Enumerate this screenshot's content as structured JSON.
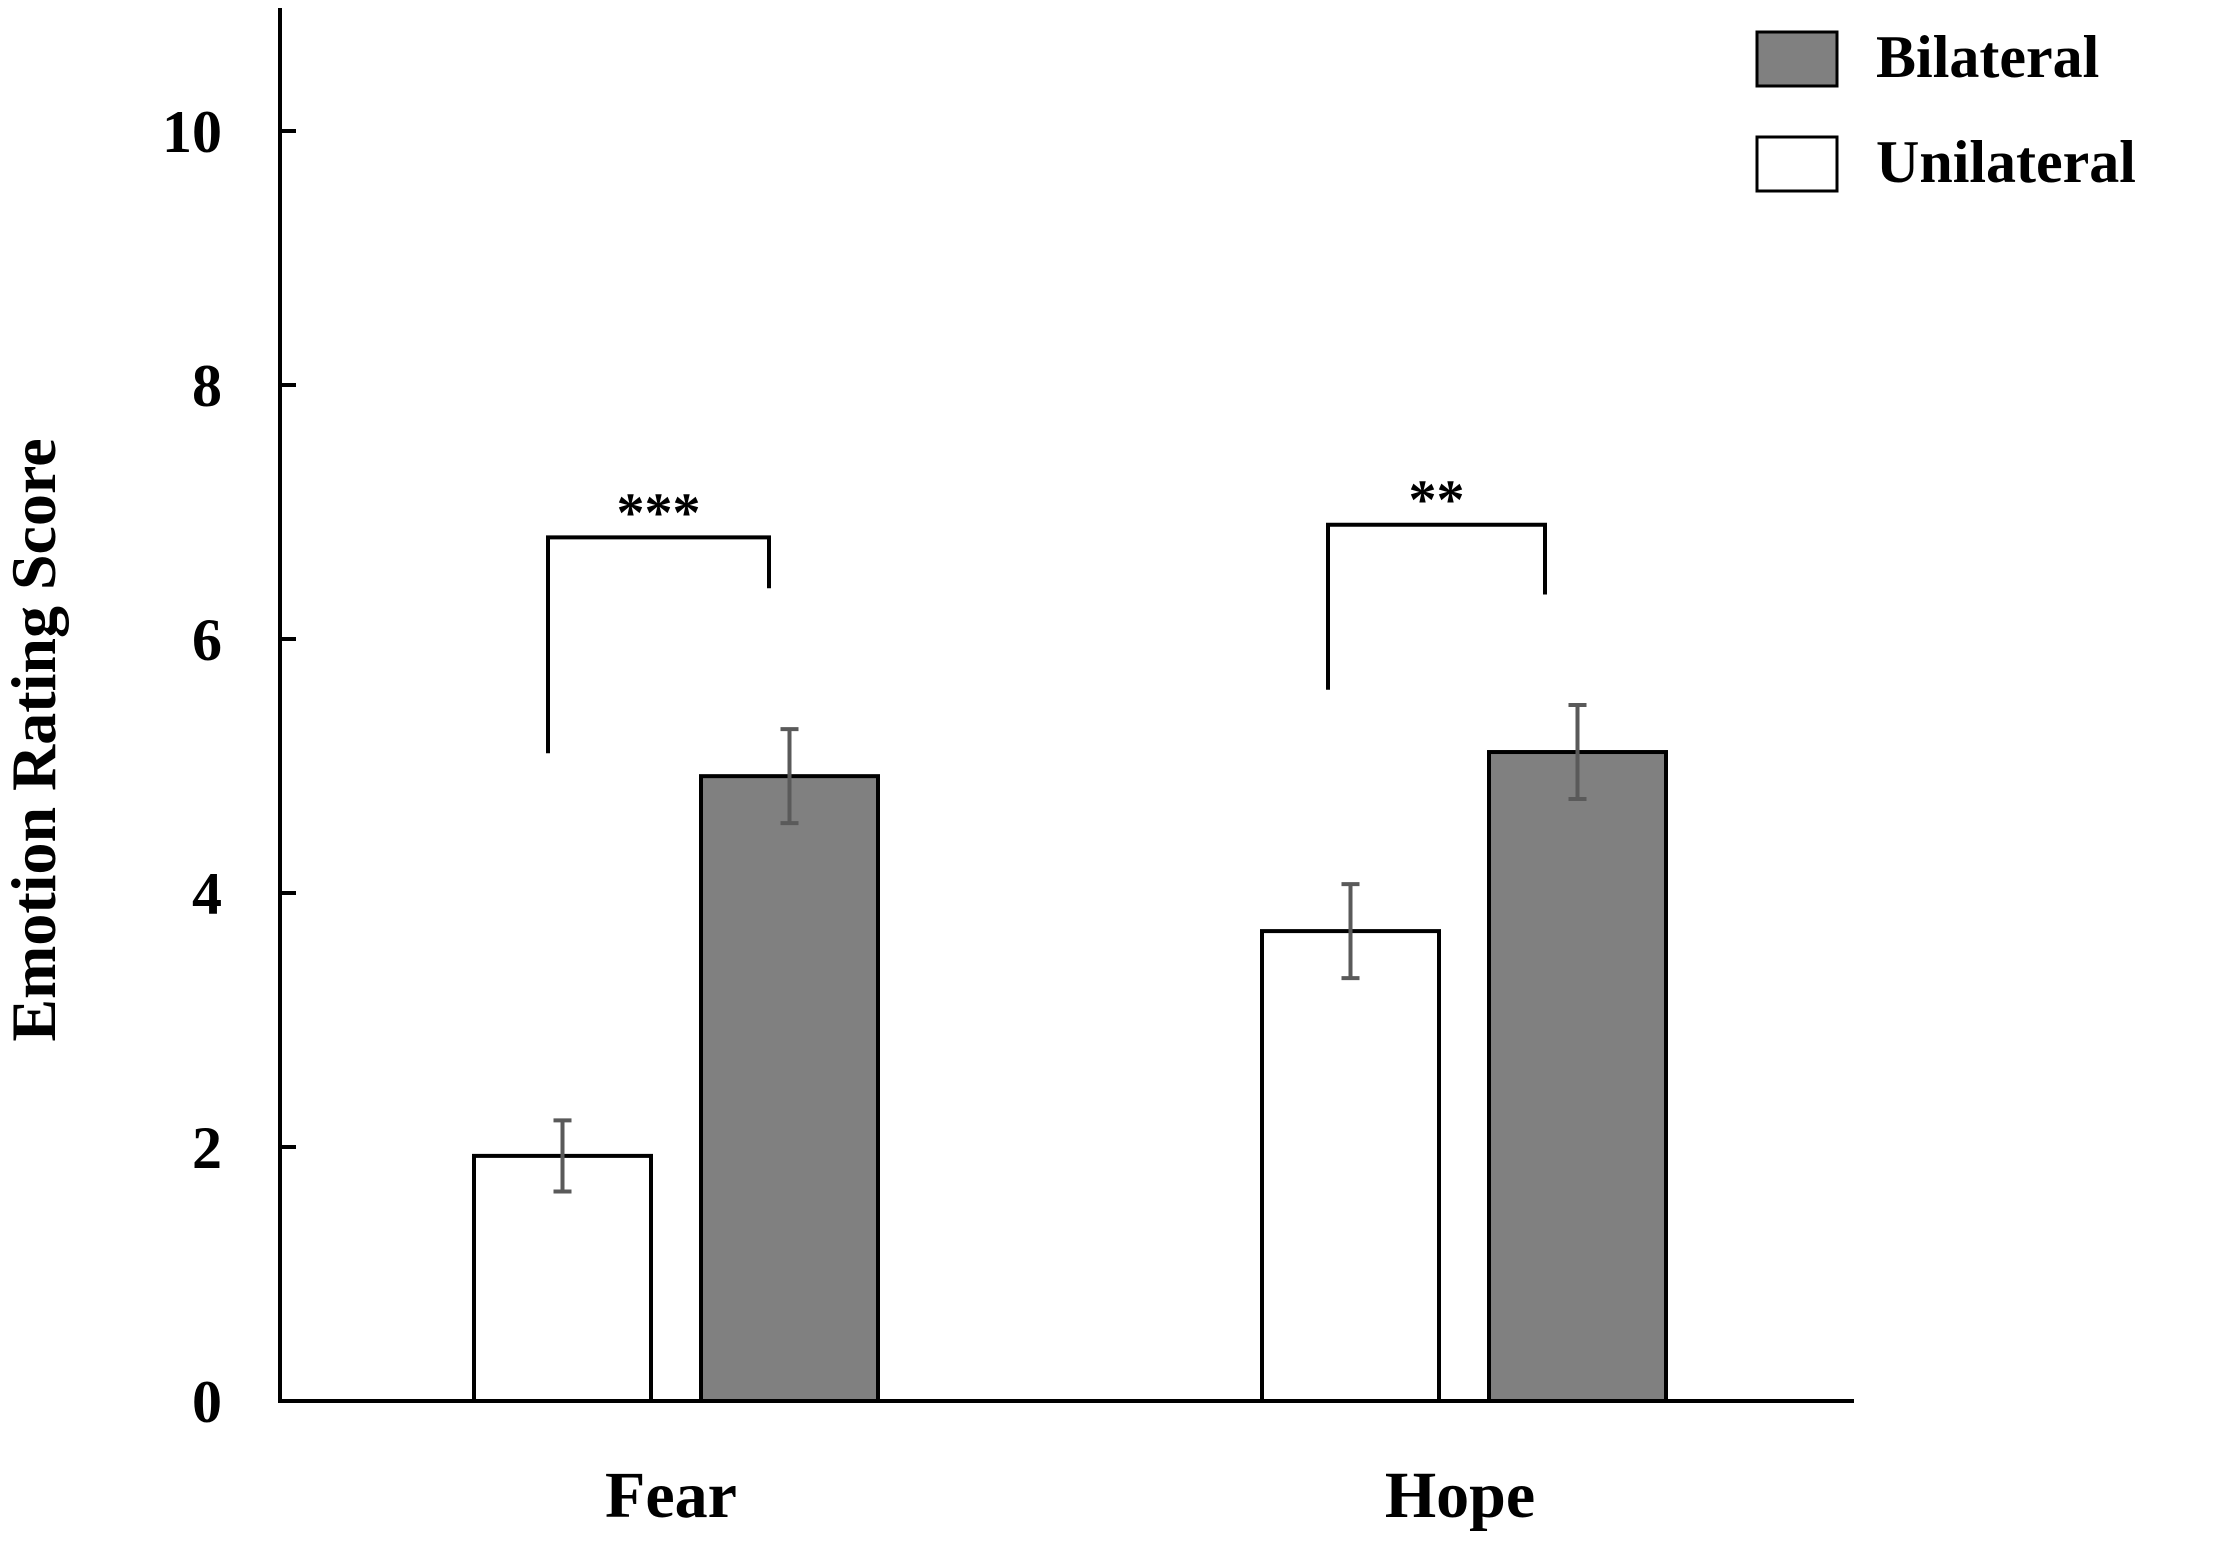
{
  "chart_data": {
    "type": "bar",
    "title": "",
    "xlabel": "",
    "ylabel": "Emotion  Rating  Score",
    "ylim": [
      0,
      11
    ],
    "yticks": [
      0,
      2,
      4,
      6,
      8,
      10
    ],
    "categories": [
      "Fear",
      "Hope"
    ],
    "series": [
      {
        "name": "Unilateral",
        "color": "#ffffff",
        "values": [
          1.93,
          3.7
        ],
        "errors": [
          0.28,
          0.37
        ]
      },
      {
        "name": "Bilateral",
        "color": "#808080",
        "values": [
          4.92,
          5.11
        ],
        "errors": [
          0.37,
          0.37
        ]
      }
    ],
    "legend_order": [
      "Bilateral",
      "Unilateral"
    ],
    "legend_position": "top-right",
    "significance": [
      {
        "category": "Fear",
        "label": "***",
        "bracket_level": 6.8,
        "left_end": 5.1,
        "right_end": 6.4
      },
      {
        "category": "Hope",
        "label": "**",
        "bracket_level": 6.9,
        "left_end": 5.6,
        "right_end": 6.35
      }
    ],
    "grid": false
  }
}
